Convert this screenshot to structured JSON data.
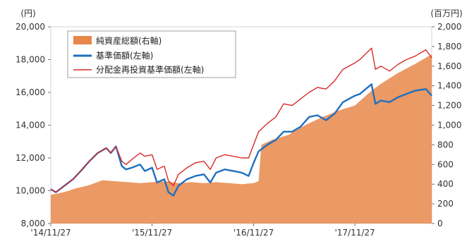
{
  "chart_data": {
    "type": "line",
    "title": "",
    "left_axis": {
      "unit": "(円)",
      "range": [
        8000,
        20000
      ],
      "ticks": [
        "8,000",
        "10,000",
        "12,000",
        "14,000",
        "16,000",
        "18,000",
        "20,000"
      ]
    },
    "right_axis": {
      "unit": "(百万円)",
      "range": [
        0,
        2000
      ],
      "ticks": [
        "0",
        "200",
        "400",
        "600",
        "800",
        "1,000",
        "1,200",
        "1,400",
        "1,600",
        "1,800",
        "2,000"
      ]
    },
    "x_ticks": [
      "'14/11/27",
      "'15/11/27",
      "'16/11/27",
      "'17/11/27"
    ],
    "x_range": [
      "2014-11-27",
      "2018-08-31"
    ],
    "legend": {
      "placement": "top-left",
      "items": [
        "純資産総額(右軸)",
        "基準価額(左軸)",
        "分配金再投資基準価額(左軸)"
      ]
    },
    "series": [
      {
        "name": "純資産総額(右軸)",
        "axis": "right",
        "kind": "area",
        "color": "#e8874a",
        "points": [
          [
            "2014-11-27",
            290
          ],
          [
            "2015-01-15",
            320
          ],
          [
            "2015-03-01",
            360
          ],
          [
            "2015-04-15",
            390
          ],
          [
            "2015-06-01",
            440
          ],
          [
            "2015-07-15",
            430
          ],
          [
            "2015-09-01",
            420
          ],
          [
            "2015-10-15",
            410
          ],
          [
            "2015-11-27",
            420
          ],
          [
            "2016-01-15",
            430
          ],
          [
            "2016-03-01",
            410
          ],
          [
            "2016-04-15",
            420
          ],
          [
            "2016-06-01",
            410
          ],
          [
            "2016-07-15",
            420
          ],
          [
            "2016-09-01",
            410
          ],
          [
            "2016-10-15",
            400
          ],
          [
            "2016-11-27",
            410
          ],
          [
            "2016-12-15",
            430
          ],
          [
            "2016-12-25",
            800
          ],
          [
            "2017-02-01",
            850
          ],
          [
            "2017-04-01",
            900
          ],
          [
            "2017-06-01",
            1000
          ],
          [
            "2017-08-01",
            1080
          ],
          [
            "2017-10-01",
            1150
          ],
          [
            "2017-11-27",
            1200
          ],
          [
            "2018-01-26",
            1350
          ],
          [
            "2018-03-01",
            1420
          ],
          [
            "2018-05-01",
            1530
          ],
          [
            "2018-07-01",
            1620
          ],
          [
            "2018-08-31",
            1720
          ]
        ]
      },
      {
        "name": "基準価額(左軸)",
        "axis": "left",
        "kind": "line",
        "color": "#1f6fc0",
        "points": [
          [
            "2014-11-27",
            10100
          ],
          [
            "2014-12-15",
            9900
          ],
          [
            "2015-01-15",
            10300
          ],
          [
            "2015-02-15",
            10700
          ],
          [
            "2015-03-15",
            11200
          ],
          [
            "2015-04-15",
            11800
          ],
          [
            "2015-05-15",
            12300
          ],
          [
            "2015-06-15",
            12600
          ],
          [
            "2015-07-01",
            12300
          ],
          [
            "2015-07-20",
            12700
          ],
          [
            "2015-08-10",
            11500
          ],
          [
            "2015-08-25",
            11300
          ],
          [
            "2015-09-15",
            11400
          ],
          [
            "2015-10-15",
            11600
          ],
          [
            "2015-11-01",
            11200
          ],
          [
            "2015-11-27",
            11400
          ],
          [
            "2015-12-15",
            10500
          ],
          [
            "2016-01-10",
            10700
          ],
          [
            "2016-01-25",
            9900
          ],
          [
            "2016-02-12",
            9700
          ],
          [
            "2016-03-01",
            10300
          ],
          [
            "2016-04-01",
            10700
          ],
          [
            "2016-05-01",
            10900
          ],
          [
            "2016-06-01",
            11000
          ],
          [
            "2016-06-24",
            10500
          ],
          [
            "2016-07-15",
            11100
          ],
          [
            "2016-08-15",
            11300
          ],
          [
            "2016-09-15",
            11200
          ],
          [
            "2016-10-15",
            11100
          ],
          [
            "2016-11-09",
            10900
          ],
          [
            "2016-11-27",
            11700
          ],
          [
            "2016-12-15",
            12400
          ],
          [
            "2017-01-15",
            12800
          ],
          [
            "2017-02-15",
            13100
          ],
          [
            "2017-03-15",
            13600
          ],
          [
            "2017-04-15",
            13600
          ],
          [
            "2017-05-15",
            13900
          ],
          [
            "2017-06-15",
            14500
          ],
          [
            "2017-07-15",
            14600
          ],
          [
            "2017-08-15",
            14300
          ],
          [
            "2017-09-15",
            14700
          ],
          [
            "2017-10-15",
            15400
          ],
          [
            "2017-11-27",
            15800
          ],
          [
            "2017-12-15",
            15900
          ],
          [
            "2018-01-26",
            16500
          ],
          [
            "2018-02-09",
            15300
          ],
          [
            "2018-03-01",
            15500
          ],
          [
            "2018-04-01",
            15400
          ],
          [
            "2018-05-01",
            15700
          ],
          [
            "2018-06-01",
            15900
          ],
          [
            "2018-07-01",
            16100
          ],
          [
            "2018-08-10",
            16200
          ],
          [
            "2018-08-31",
            15800
          ]
        ]
      },
      {
        "name": "分配金再投資基準価額(左軸)",
        "axis": "left",
        "kind": "line",
        "color": "#d92b2b",
        "points": [
          [
            "2014-11-27",
            10100
          ],
          [
            "2014-12-15",
            9900
          ],
          [
            "2015-01-15",
            10300
          ],
          [
            "2015-02-15",
            10700
          ],
          [
            "2015-03-15",
            11200
          ],
          [
            "2015-04-15",
            11800
          ],
          [
            "2015-05-15",
            12300
          ],
          [
            "2015-06-15",
            12600
          ],
          [
            "2015-07-01",
            12300
          ],
          [
            "2015-07-20",
            12700
          ],
          [
            "2015-08-10",
            11800
          ],
          [
            "2015-08-25",
            11600
          ],
          [
            "2015-09-15",
            11900
          ],
          [
            "2015-10-15",
            12300
          ],
          [
            "2015-11-01",
            12100
          ],
          [
            "2015-11-27",
            12200
          ],
          [
            "2015-12-15",
            11300
          ],
          [
            "2016-01-10",
            11500
          ],
          [
            "2016-01-25",
            10600
          ],
          [
            "2016-02-12",
            10300
          ],
          [
            "2016-03-01",
            11000
          ],
          [
            "2016-04-01",
            11400
          ],
          [
            "2016-05-01",
            11700
          ],
          [
            "2016-06-01",
            11800
          ],
          [
            "2016-06-24",
            11300
          ],
          [
            "2016-07-15",
            12000
          ],
          [
            "2016-08-15",
            12200
          ],
          [
            "2016-09-15",
            12100
          ],
          [
            "2016-10-15",
            12000
          ],
          [
            "2016-11-09",
            12000
          ],
          [
            "2016-11-27",
            12800
          ],
          [
            "2016-12-15",
            13600
          ],
          [
            "2017-01-15",
            14100
          ],
          [
            "2017-02-15",
            14500
          ],
          [
            "2017-03-15",
            15300
          ],
          [
            "2017-04-15",
            15200
          ],
          [
            "2017-05-15",
            15600
          ],
          [
            "2017-06-15",
            16000
          ],
          [
            "2017-07-15",
            16300
          ],
          [
            "2017-08-15",
            16200
          ],
          [
            "2017-09-15",
            16700
          ],
          [
            "2017-10-15",
            17400
          ],
          [
            "2017-11-27",
            17800
          ],
          [
            "2017-12-15",
            18000
          ],
          [
            "2018-01-26",
            18700
          ],
          [
            "2018-02-09",
            17400
          ],
          [
            "2018-03-01",
            17600
          ],
          [
            "2018-04-01",
            17300
          ],
          [
            "2018-05-01",
            17700
          ],
          [
            "2018-06-01",
            18000
          ],
          [
            "2018-07-01",
            18200
          ],
          [
            "2018-08-10",
            18600
          ],
          [
            "2018-08-31",
            18100
          ]
        ]
      }
    ]
  }
}
